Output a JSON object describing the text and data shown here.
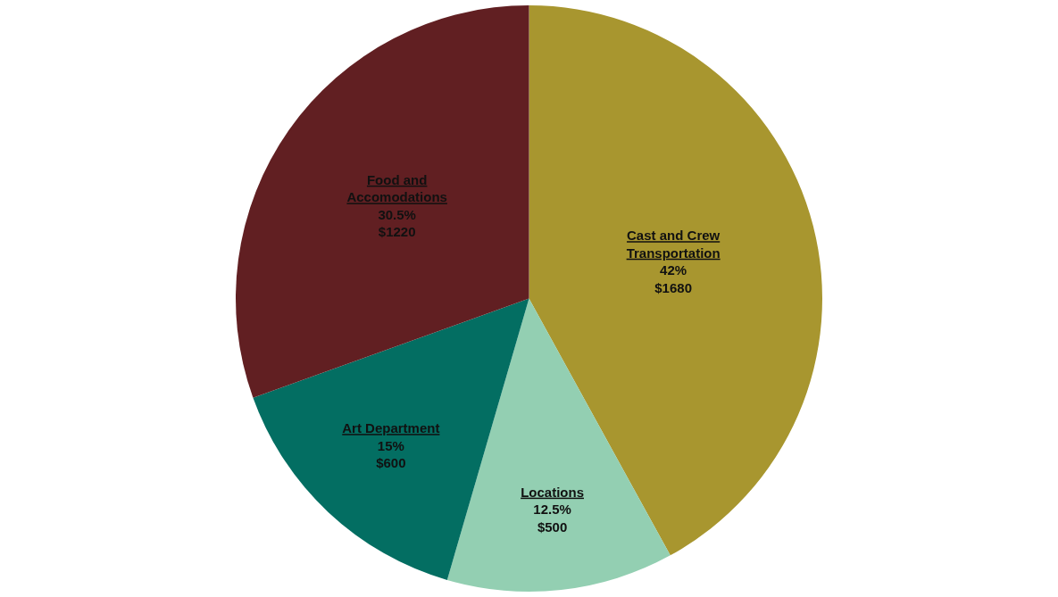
{
  "chart_data": {
    "type": "pie",
    "categories": [
      "Cast and Crew\nTransportation",
      "Locations",
      "Art Department",
      "Food and\nAccomodations"
    ],
    "values": [
      1680,
      500,
      600,
      1220
    ],
    "value_labels": [
      "42%\n$1680",
      "12.5%\n$500",
      "15%\n$600",
      "30.5%\n$1220"
    ],
    "colors": [
      "#a8962f",
      "#93cfb2",
      "#036e62",
      "#611f22"
    ],
    "legend": false
  }
}
